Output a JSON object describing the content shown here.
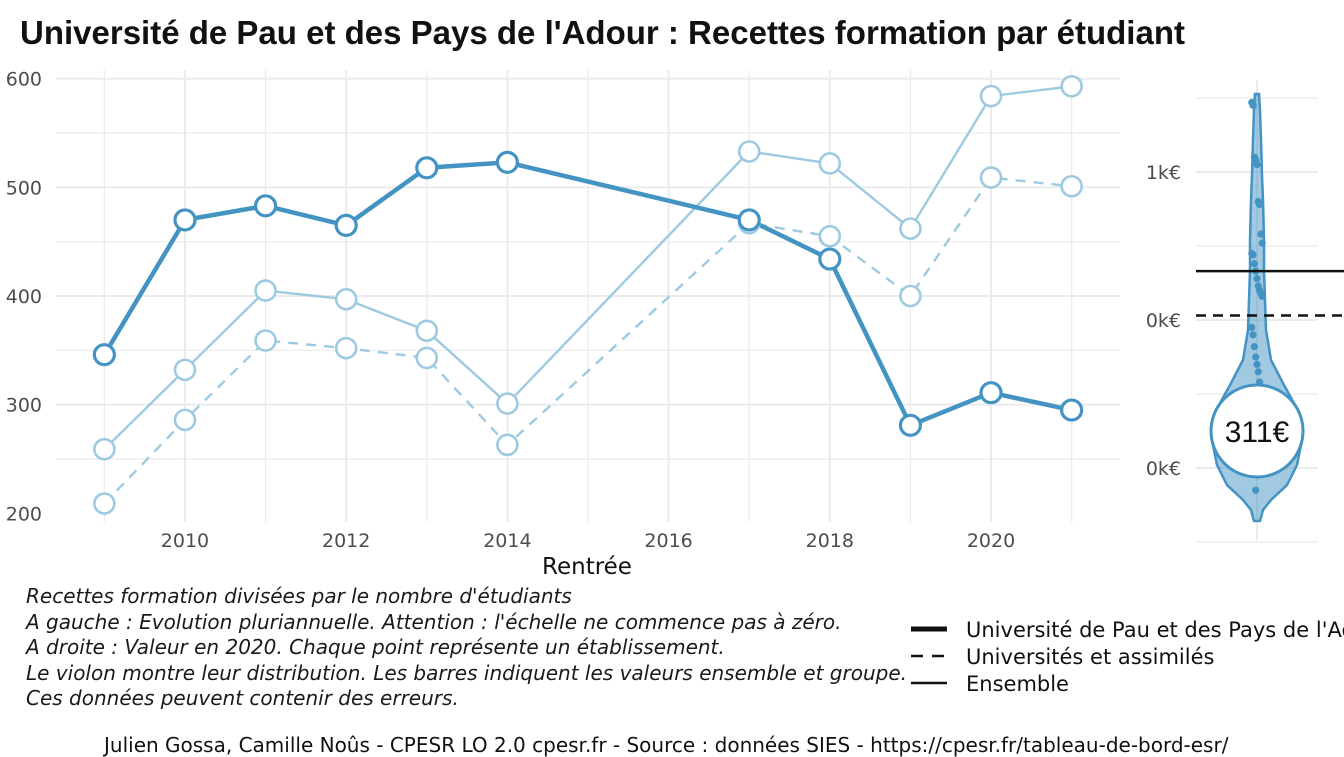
{
  "title": "Université de Pau et des Pays de l'Adour  :  Recettes formation par étudiant",
  "chart_data": [
    {
      "type": "line",
      "xlabel": "Rentrée",
      "ylabel": "",
      "x": [
        2009,
        2010,
        2011,
        2012,
        2013,
        2014,
        2017,
        2018,
        2019,
        2020,
        2021
      ],
      "xticks": [
        2010,
        2012,
        2014,
        2016,
        2018,
        2020
      ],
      "yticks": [
        200,
        300,
        400,
        500,
        600
      ],
      "xlim": [
        2008.4,
        2021.6
      ],
      "ylim": [
        192,
        608
      ],
      "grid": true,
      "series": [
        {
          "name": "Université de Pau et des Pays de l'Adour",
          "style": "solid-thick",
          "color": "#4393c3",
          "values": [
            346,
            470,
            483,
            465,
            518,
            523,
            470,
            434,
            281,
            311,
            295
          ]
        },
        {
          "name": "Universités et assimilés",
          "style": "dashed",
          "color": "#9ecae1",
          "values": [
            209,
            286,
            359,
            352,
            343,
            263,
            467,
            455,
            400,
            509,
            501
          ]
        },
        {
          "name": "Ensemble",
          "style": "solid-thin",
          "color": "#9ecae1",
          "values": [
            259,
            332,
            405,
            397,
            368,
            301,
            533,
            522,
            462,
            584,
            593
          ]
        }
      ]
    },
    {
      "type": "violin",
      "yticks": [
        "1k€",
        "0k€",
        "0k€"
      ],
      "badge": "311€",
      "color": "#4393c3",
      "points": [
        1.47,
        1.45,
        1.1,
        1.08,
        1.05,
        0.8,
        0.78,
        0.58,
        0.52,
        0.45,
        0.44,
        0.38,
        0.33,
        0.28,
        0.23,
        0.2,
        0.18,
        0.16,
        -0.05,
        -0.1,
        -0.18,
        -0.25,
        -0.3,
        -0.35,
        -0.42,
        -0.48,
        -0.55,
        -0.62,
        -0.75,
        -0.9,
        -1.15
      ],
      "hline_solid": 0.33,
      "hline_dashed": 0.03
    }
  ],
  "caption": [
    "Recettes formation divisées par le nombre d'étudiants",
    "A gauche : Evolution pluriannuelle. Attention : l'échelle ne commence pas à zéro.",
    "A droite : Valeur en 2020. Chaque point représente un établissement.",
    "Le violon montre leur distribution. Les barres indiquent les valeurs ensemble et groupe.",
    "Ces données peuvent contenir des erreurs."
  ],
  "legend": [
    {
      "label": "Université de Pau et des Pays de l'Adour",
      "style": "solid-thick"
    },
    {
      "label": "Universités et assimilés",
      "style": "dashed"
    },
    {
      "label": "Ensemble",
      "style": "solid-thin"
    }
  ],
  "footer": "Julien Gossa, Camille Noûs - CPESR LO 2.0 cpesr.fr - Source : données SIES - https://cpesr.fr/tableau-de-bord-esr/"
}
